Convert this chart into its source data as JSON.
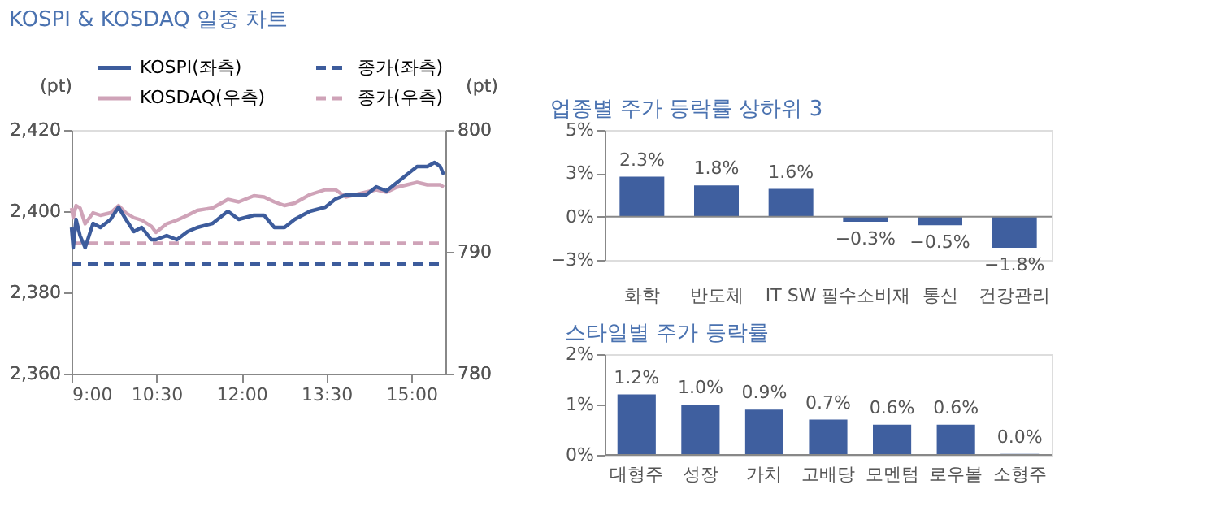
{
  "chart_data": [
    {
      "type": "line",
      "title": "KOSPI & KOSDAQ 일중 차트",
      "ylabel": "(pt)",
      "y2label": "(pt)",
      "legend": "top",
      "line_style": "solid",
      "x": [
        9.0,
        9.03,
        9.08,
        9.15,
        9.24,
        9.38,
        9.51,
        9.69,
        9.83,
        9.96,
        10.1,
        10.24,
        10.41,
        10.49,
        10.68,
        10.86,
        11.05,
        11.22,
        11.49,
        11.76,
        11.95,
        12.22,
        12.4,
        12.58,
        12.76,
        12.94,
        13.21,
        13.48,
        13.66,
        13.84,
        14.02,
        14.2,
        14.38,
        14.56,
        14.74,
        14.92,
        15.1,
        15.28,
        15.41,
        15.51,
        15.57
      ],
      "xlim": [
        9,
        15.6
      ],
      "xticks": [
        {
          "value": 9,
          "label": "9:00"
        },
        {
          "value": 10.5,
          "label": "10:30"
        },
        {
          "value": 12,
          "label": "12:00"
        },
        {
          "value": 13.5,
          "label": "13:30"
        },
        {
          "value": 15,
          "label": "15:00"
        }
      ],
      "ylim": [
        2360,
        2420
      ],
      "yticks": [
        {
          "value": 2360,
          "label": "2,360"
        },
        {
          "value": 2380,
          "label": "2,380"
        },
        {
          "value": 2400,
          "label": "2,400"
        },
        {
          "value": 2420,
          "label": "2,420"
        }
      ],
      "y2lim": [
        780,
        800
      ],
      "y2ticks": [
        780,
        790,
        800
      ],
      "series": [
        {
          "name": "KOSPI(좌측)",
          "color": "#3d5c9c",
          "values": [
            2396,
            2391,
            2398,
            2394,
            2391,
            2397,
            2396,
            2398,
            2401,
            2398,
            2395,
            2396,
            2393,
            2393,
            2394,
            2393,
            2395,
            2396,
            2397,
            2400,
            2398,
            2399,
            2399,
            2396,
            2396,
            2398,
            2400,
            2401,
            2403,
            2404,
            2404,
            2404,
            2406,
            2405,
            2407,
            2409,
            2411,
            2411,
            2412,
            2411,
            2409
          ]
        },
        {
          "name": "KOSDAQ(우측)",
          "color": "#cfa3b8",
          "axis": "y2",
          "values": [
            793.6,
            792.8,
            793.8,
            793.6,
            792.3,
            793.2,
            793.0,
            793.2,
            793.8,
            793.2,
            792.8,
            792.6,
            792.1,
            791.6,
            792.3,
            792.6,
            793.0,
            793.4,
            793.6,
            794.3,
            794.1,
            794.6,
            794.5,
            794.1,
            793.8,
            794.0,
            794.7,
            795.1,
            795.1,
            794.5,
            794.7,
            794.9,
            795.1,
            794.9,
            795.3,
            795.5,
            795.7,
            795.5,
            795.5,
            795.5,
            795.3
          ]
        }
      ],
      "ref_lines": [
        {
          "axis": "y",
          "value": 2387,
          "label": "종가(좌측)",
          "color": "#3d5c9c",
          "line_style": "dashed"
        },
        {
          "axis": "y2",
          "value": 790.7,
          "label": "종가(우측)",
          "color": "#cfa3b8",
          "line_style": "dashed"
        }
      ]
    },
    {
      "type": "bar",
      "title": "업종별 주가 등락률 상하위 3",
      "categories": [
        "화학",
        "반도체",
        "IT SW",
        "필수소비재",
        "통신",
        "건강관리"
      ],
      "values": [
        2.3,
        1.8,
        1.6,
        -0.3,
        -0.5,
        -1.8
      ],
      "value_labels": [
        "2.3%",
        "1.8%",
        "1.6%",
        "−0.3%",
        "−0.5%",
        "−1.8%"
      ],
      "color": "#3f5f9f",
      "ylim": [
        -2.5,
        5
      ],
      "yticks": [
        {
          "value": -2.5,
          "label": "−3%"
        },
        {
          "value": 0,
          "label": "0%"
        },
        {
          "value": 2.5,
          "label": "3%"
        },
        {
          "value": 5,
          "label": "5%"
        }
      ]
    },
    {
      "type": "bar",
      "title": "스타일별 주가 등락률",
      "categories": [
        "대형주",
        "성장",
        "가치",
        "고배당",
        "모멘텀",
        "로우볼",
        "소형주"
      ],
      "values": [
        1.2,
        1.0,
        0.9,
        0.7,
        0.6,
        0.6,
        0.02
      ],
      "value_labels": [
        "1.2%",
        "1.0%",
        "0.9%",
        "0.7%",
        "0.6%",
        "0.6%",
        "0.0%"
      ],
      "color": "#3f5f9f",
      "ylim": [
        0,
        2
      ],
      "yticks": [
        {
          "value": 0,
          "label": "0%"
        },
        {
          "value": 1,
          "label": "1%"
        },
        {
          "value": 2,
          "label": "2%"
        }
      ]
    }
  ]
}
